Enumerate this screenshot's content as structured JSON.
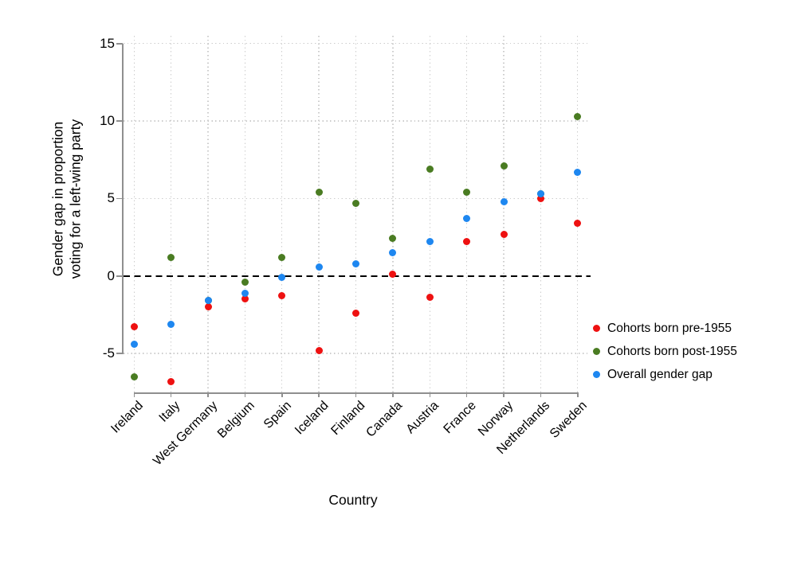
{
  "chart_data": {
    "type": "scatter",
    "title": "",
    "xlabel": "Country",
    "ylabel": "Gender gap in proportion voting for a left-wing party",
    "ylabel_lines": [
      "Gender gap in proportion",
      "voting for a left-wing party"
    ],
    "categories": [
      "Ireland",
      "Italy",
      "West Germany",
      "Belgium",
      "Spain",
      "Iceland",
      "Finland",
      "Canada",
      "Austria",
      "France",
      "Norway",
      "Netherlands",
      "Sweden"
    ],
    "yticks": [
      -5,
      0,
      5,
      10,
      15
    ],
    "ylim": [
      -7.5,
      15.5
    ],
    "zero_reference_line": true,
    "grid": "dotted",
    "legend_position": "right",
    "series": [
      {
        "name": "Cohorts born pre-1955",
        "color": "#ee1111",
        "values": [
          -3.3,
          -6.8,
          -2.0,
          -1.5,
          -1.3,
          -4.8,
          -2.4,
          0.1,
          -1.4,
          2.2,
          2.7,
          5.0,
          3.4
        ]
      },
      {
        "name": "Cohorts born post-1955",
        "color": "#4a7c22",
        "values": [
          -6.5,
          1.2,
          -1.6,
          -0.4,
          1.2,
          5.4,
          4.7,
          2.4,
          6.9,
          5.4,
          7.1,
          5.3,
          10.3
        ]
      },
      {
        "name": "Overall gender gap",
        "color": "#1e87f0",
        "values": [
          -4.4,
          -3.1,
          -1.6,
          -1.1,
          -0.1,
          0.6,
          0.8,
          1.5,
          2.2,
          3.7,
          4.8,
          5.3,
          6.7
        ]
      }
    ]
  }
}
